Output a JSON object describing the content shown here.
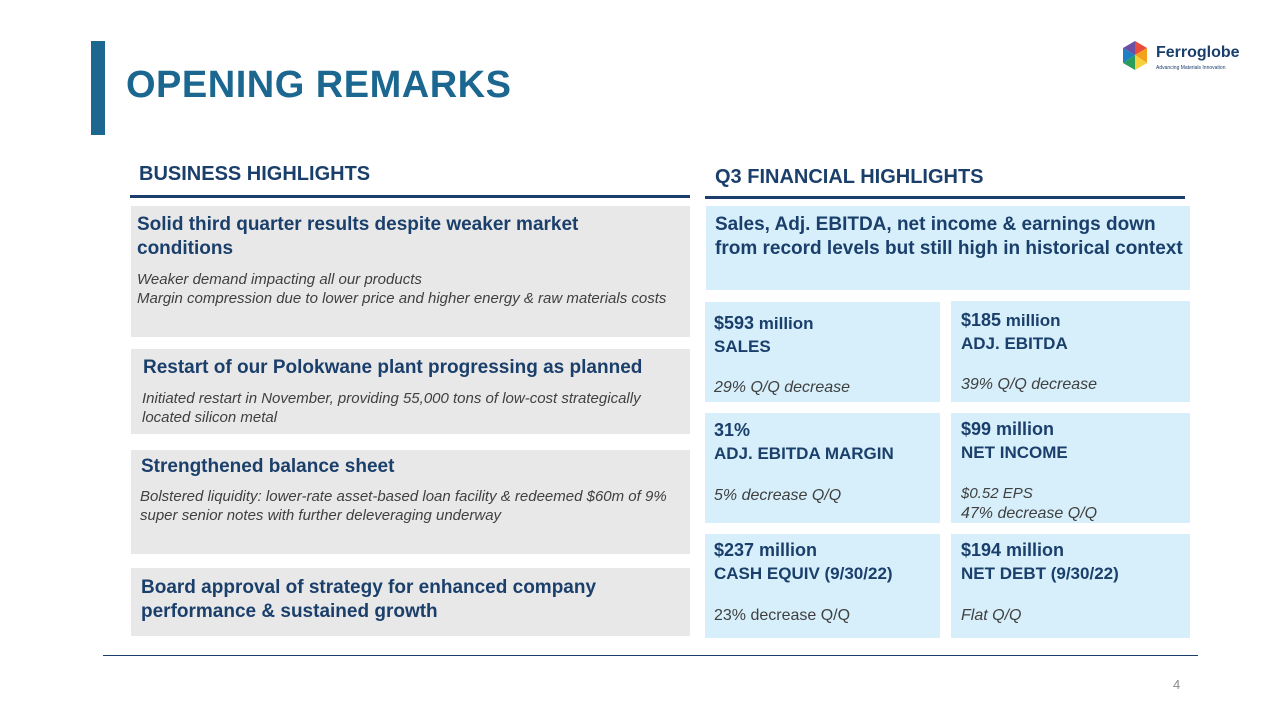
{
  "slide": {
    "title": "OPENING REMARKS",
    "page_number": "4"
  },
  "logo": {
    "name": "Ferroglobe",
    "tagline": "Advancing Materials Innovation"
  },
  "business": {
    "heading": "BUSINESS HIGHLIGHTS",
    "items": [
      {
        "title": "Solid third quarter results despite weaker market conditions",
        "lines": [
          "Weaker demand impacting all our products",
          "Margin compression due to lower price and higher energy & raw materials costs"
        ]
      },
      {
        "title": "Restart of our Polokwane plant progressing as planned",
        "lines": [
          "Initiated restart in November, providing 55,000 tons of low-cost strategically located silicon metal"
        ]
      },
      {
        "title": "Strengthened balance sheet",
        "lines": [
          "Bolstered liquidity: lower-rate asset-based  loan facility & redeemed $60m of 9% super senior notes with further deleveraging underway"
        ]
      },
      {
        "title": "Board approval of strategy for enhanced company performance & sustained growth",
        "lines": []
      }
    ]
  },
  "financial": {
    "heading": "Q3 FINANCIAL HIGHLIGHTS",
    "summary": "Sales, Adj. EBITDA, net income & earnings down from record levels but still high in historical context",
    "kpis": [
      {
        "value": "$593",
        "unit": " million",
        "label": "SALES",
        "sub1": "29% Q/Q decrease",
        "sub2": ""
      },
      {
        "value": "$185",
        "unit": " million",
        "label": "ADJ. EBITDA",
        "sub1": "39% Q/Q decrease",
        "sub2": ""
      },
      {
        "value": "31%",
        "unit": "",
        "label": "ADJ. EBITDA MARGIN",
        "sub1": "5% decrease Q/Q",
        "sub2": ""
      },
      {
        "value": "$99 million",
        "unit": "",
        "label": "NET INCOME",
        "sub1": "$0.52  EPS",
        "sub2": "47% decrease Q/Q"
      },
      {
        "value": "$237 million",
        "unit": "",
        "label": "CASH EQUIV  (9/30/22)",
        "sub1": "23% decrease Q/Q",
        "sub2": ""
      },
      {
        "value": "$194 million",
        "unit": "",
        "label": "NET DEBT (9/30/22)",
        "sub1": "Flat Q/Q",
        "sub2": ""
      }
    ]
  },
  "colors": {
    "brand_blue": "#1b6790",
    "navy": "#1b3f6b",
    "gray_box": "#e8e8e8",
    "light_blue_box": "#d6effb"
  }
}
